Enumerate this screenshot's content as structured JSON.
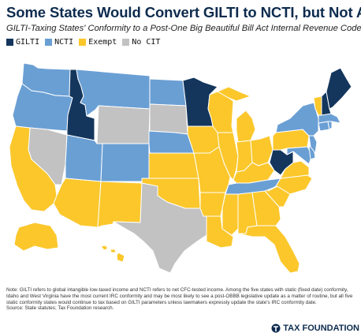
{
  "title": "Some States Would Convert GILTI to NCTI, but Not All",
  "subtitle": "GILTI-Taxing States' Conformity to a Post-One Big Beautiful Bill Act Internal Revenue Code",
  "colors": {
    "GILTI": "#14365d",
    "NCTI": "#6a9fd4",
    "Exempt": "#fbc72b",
    "No CIT": "#c2c2c2"
  },
  "legend": [
    {
      "key": "GILTI",
      "label": "GILTI",
      "color": "#14365d"
    },
    {
      "key": "NCTI",
      "label": "NCTI",
      "color": "#6a9fd4"
    },
    {
      "key": "Exempt",
      "label": "Exempt",
      "color": "#fbc72b"
    },
    {
      "key": "No CIT",
      "label": "No CIT",
      "color": "#c2c2c2"
    }
  ],
  "states": {
    "WA": "NCTI",
    "OR": "NCTI",
    "ID": "GILTI",
    "MT": "NCTI",
    "WY": "No CIT",
    "ND": "NCTI",
    "SD": "No CIT",
    "NE": "NCTI",
    "KS": "Exempt",
    "OK": "Exempt",
    "TX": "No CIT",
    "NM": "Exempt",
    "CO": "NCTI",
    "UT": "NCTI",
    "NV": "No CIT",
    "CA": "Exempt",
    "AZ": "Exempt",
    "MN": "GILTI",
    "IA": "Exempt",
    "MO": "Exempt",
    "AR": "Exempt",
    "LA": "Exempt",
    "WI": "Exempt",
    "IL": "Exempt",
    "MI": "Exempt",
    "IN": "Exempt",
    "OH": "Exempt",
    "KY": "Exempt",
    "TN": "NCTI",
    "MS": "Exempt",
    "AL": "Exempt",
    "GA": "Exempt",
    "FL": "Exempt",
    "SC": "Exempt",
    "NC": "Exempt",
    "VA": "Exempt",
    "WV": "GILTI",
    "PA": "Exempt",
    "NY": "NCTI",
    "VT": "Exempt",
    "NH": "GILTI",
    "ME": "GILTI",
    "MA": "NCTI",
    "RI": "NCTI",
    "CT": "NCTI",
    "NJ": "NCTI",
    "DE": "NCTI",
    "MD": "NCTI",
    "DC": "NCTI",
    "AK": "Exempt",
    "HI": "Exempt"
  },
  "note": "Note: GILTI refers to global intangible low-taxed income and NCTI refers to net CFC-tested income. Among the five states with static (fixed date) conformity, Idaho and West Virginia have the most current IRC conformity and may be most likely to see a post-OBBB legislative update as a matter of routine, but all five static conformity states would continue to tax based on GILTI parameters unless lawmakers expressly update the state's IRC conformity date.",
  "source": "Source: State statutes; Tax Foundation research.",
  "brand": "TAX FOUNDATION"
}
